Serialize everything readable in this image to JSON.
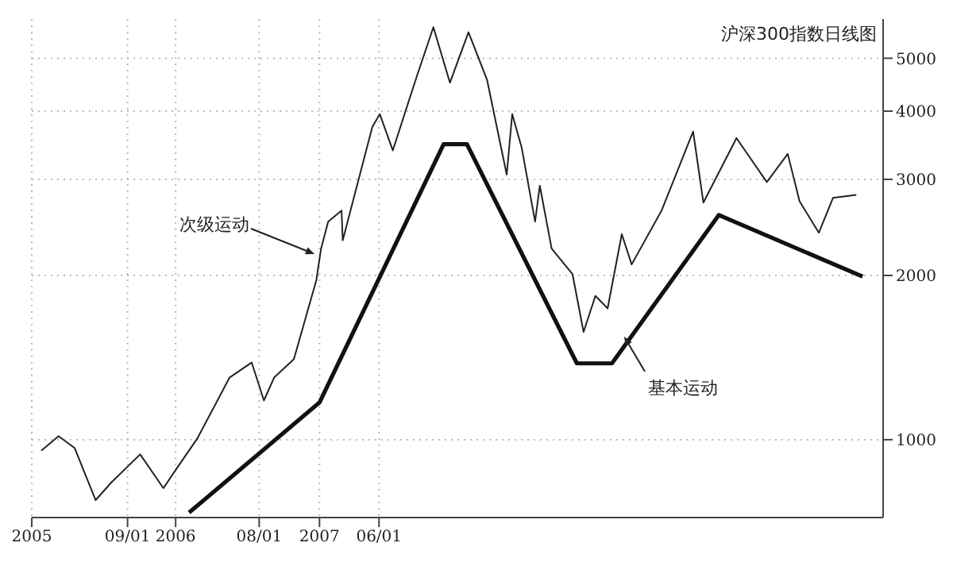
{
  "chart_data": {
    "type": "line",
    "title": "沪深300指数日线图",
    "series": [
      {
        "color": "#222222",
        "line_style": "solid",
        "x": [
          "2005-01-25",
          "2005-03-10",
          "2005-04-20",
          "2005-06-12",
          "2005-07-22",
          "2005-10-03",
          "2005-12-01",
          "2006-01-01",
          "2006-02-25",
          "2006-05-18",
          "2006-07-13",
          "2006-08-13",
          "2006-09-08",
          "2006-10-28",
          "2006-12-24",
          "2007-01-05",
          "2007-01-23",
          "2007-02-26",
          "2007-03-01",
          "2007-05-15",
          "2007-06-03",
          "2007-07-06",
          "2007-09-06",
          "2007-10-17",
          "2007-11-28",
          "2008-01-14",
          "2008-03-01",
          "2008-04-20",
          "2008-05-04",
          "2008-05-28",
          "2008-07-01",
          "2008-07-13",
          "2008-08-12",
          "2008-10-04",
          "2008-11-01",
          "2008-12-01",
          "2009-01-01",
          "2009-02-06",
          "2009-03-03",
          "2009-05-18",
          "2009-08-06",
          "2009-09-01",
          "2009-11-24",
          "2010-02-09",
          "2010-04-03",
          "2010-05-03",
          "2010-06-21",
          "2010-07-27",
          "2010-09-24"
        ],
        "values": [
          955,
          1015,
          965,
          775,
          835,
          940,
          815,
          880,
          1005,
          1300,
          1385,
          1180,
          1300,
          1405,
          1960,
          2240,
          2510,
          2630,
          2320,
          3740,
          3950,
          3390,
          4660,
          5700,
          4510,
          5580,
          4570,
          3060,
          3950,
          3430,
          2510,
          2920,
          2240,
          2010,
          1575,
          1835,
          1740,
          2380,
          2095,
          2630,
          3670,
          2720,
          3570,
          2965,
          3340,
          2735,
          2395,
          2775,
          2810
        ]
      },
      {
        "color": "#111111",
        "line_style": "solid",
        "x": [
          "2006-02-04",
          "2007-01-01",
          "2007-11-12",
          "2008-01-10",
          "2008-10-15",
          "2009-01-12",
          "2009-10-10",
          "2010-10-10"
        ],
        "values": [
          735,
          1170,
          3480,
          3480,
          1380,
          1380,
          2580,
          1990
        ]
      }
    ],
    "xlim": [
      "2005-01-01",
      "2010-12-01"
    ],
    "xticks": [
      {
        "value": "2005-01-01",
        "label": "2005"
      },
      {
        "value": "2005-09-01",
        "label": "09/01"
      },
      {
        "value": "2006-01-01",
        "label": "2006"
      },
      {
        "value": "2006-08-01",
        "label": "08/01"
      },
      {
        "value": "2007-01-01",
        "label": "2007"
      },
      {
        "value": "2007-06-01",
        "label": "06/01"
      }
    ],
    "ylim": [
      720,
      5900
    ],
    "yticks": [
      1000,
      2000,
      3000,
      4000,
      5000
    ],
    "log": "y",
    "grid": true,
    "marker": "none",
    "annotations": [
      "次级运动",
      "基本运动"
    ]
  }
}
